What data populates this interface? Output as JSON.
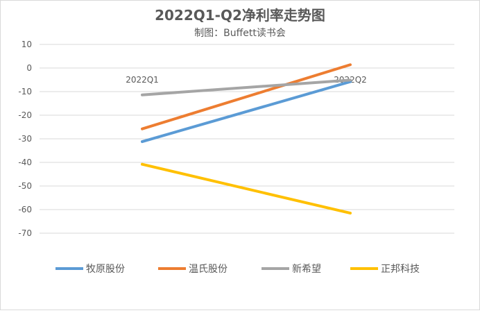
{
  "chart_data": {
    "type": "line",
    "title": "2022Q1-Q2净利率走势图",
    "subtitle": "制图：Buffett读书会",
    "categories": [
      "2022Q1",
      "2022Q2"
    ],
    "ylim": [
      -70,
      10
    ],
    "yticks": [
      10,
      0,
      -10,
      -20,
      -30,
      -40,
      -50,
      -60,
      -70
    ],
    "grid": true,
    "legend_position": "bottom",
    "series": [
      {
        "name": "牧原股份",
        "color": "#5B9BD5",
        "values": [
          -31.2,
          -5.8
        ]
      },
      {
        "name": "温氏股份",
        "color": "#ED7D31",
        "values": [
          -25.8,
          1.4
        ]
      },
      {
        "name": "新希望",
        "color": "#A5A5A5",
        "values": [
          -11.4,
          -5.1
        ]
      },
      {
        "name": "正邦科技",
        "color": "#FFC000",
        "values": [
          -40.8,
          -61.5
        ]
      }
    ]
  }
}
